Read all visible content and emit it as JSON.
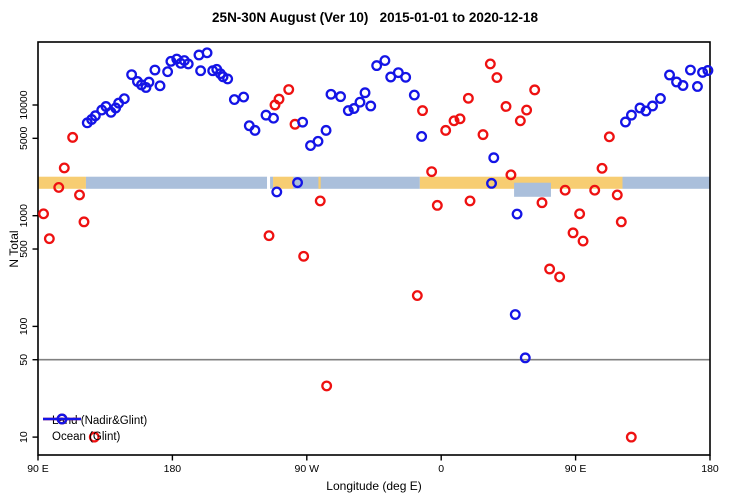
{
  "title": "25N-30N August (Ver 10)   2015-01-01 to 2020-12-18",
  "legend": {
    "land_label": "Land (Nadir&Glint)",
    "ocean_label": "Ocean (Glint)"
  },
  "chart_data": {
    "type": "scatter",
    "title": "25N-30N August (Ver 10)   2015-01-01 to 2020-12-18",
    "xlabel": "Longitude (deg E)",
    "ylabel": "N Total",
    "y_scale": "log10",
    "ylim": [
      7,
      37000
    ],
    "grid": false,
    "legend_position": "bottom-left-inside",
    "x_axis_note": "axis spans 450 deg eastward starting at 90E; deg = degrees east of 90E",
    "x_ticks": [
      {
        "deg": 0,
        "label": "90 E"
      },
      {
        "deg": 90,
        "label": "180"
      },
      {
        "deg": 180,
        "label": "90 W"
      },
      {
        "deg": 270,
        "label": "0"
      },
      {
        "deg": 360,
        "label": "90 E"
      },
      {
        "deg": 450,
        "label": "180"
      }
    ],
    "y_ticks": [
      10,
      50,
      100,
      500,
      1000,
      5000,
      10000
    ],
    "reference_line_n": 50,
    "reference_line_color": "#808080",
    "surface_band": {
      "n_range": [
        1750,
        2250
      ],
      "land_color": "#f7cd72",
      "ocean_color": "#aabfdb",
      "segments": [
        {
          "from": 0,
          "to": 32.1,
          "surface": "land"
        },
        {
          "from": 32.1,
          "to": 153.4,
          "surface": "ocean"
        },
        {
          "from": 153.4,
          "to": 155.4,
          "surface": "gap"
        },
        {
          "from": 155.4,
          "to": 157.4,
          "surface": "ocean"
        },
        {
          "from": 157.4,
          "to": 170.8,
          "surface": "land"
        },
        {
          "from": 170.8,
          "to": 255.7,
          "surface": "ocean"
        },
        {
          "from": 255.7,
          "to": 391.4,
          "surface": "land"
        },
        {
          "from": 391.4,
          "to": 450,
          "surface": "ocean"
        }
      ],
      "details": [
        {
          "type": "land_sliver",
          "from": 187.8,
          "to": 189.3
        },
        {
          "type": "ocean_dip",
          "from": 318.8,
          "to": 343.5
        }
      ]
    },
    "series": [
      {
        "name": "Land (Nadir&Glint)",
        "color": "#ee1111",
        "points": [
          [
            23.2,
            5100
          ],
          [
            17.6,
            2700
          ],
          [
            13.9,
            1800
          ],
          [
            27.8,
            1540
          ],
          [
            3.7,
            1040
          ],
          [
            30.8,
            880
          ],
          [
            7.6,
            620
          ],
          [
            37.7,
            10
          ],
          [
            154.7,
            660
          ],
          [
            158.7,
            10000
          ],
          [
            161.4,
            11300
          ],
          [
            167.9,
            13800
          ],
          [
            172.1,
            6700
          ],
          [
            177.9,
            430
          ],
          [
            189,
            1360
          ],
          [
            193.3,
            29
          ],
          [
            254,
            190
          ],
          [
            257.5,
            8900
          ],
          [
            263.6,
            2500
          ],
          [
            267.4,
            1240
          ],
          [
            273,
            5900
          ],
          [
            278.6,
            7200
          ],
          [
            282.6,
            7500
          ],
          [
            288.2,
            11500
          ],
          [
            289.3,
            1360
          ],
          [
            298,
            5400
          ],
          [
            302.9,
            23500
          ],
          [
            307.3,
            17700
          ],
          [
            313.4,
            9700
          ],
          [
            316.7,
            2340
          ],
          [
            323,
            7200
          ],
          [
            327.2,
            9000
          ],
          [
            332.6,
            13700
          ],
          [
            337.5,
            1310
          ],
          [
            342.6,
            330
          ],
          [
            349.3,
            280
          ],
          [
            353,
            1700
          ],
          [
            358.3,
            700
          ],
          [
            362.7,
            1040
          ],
          [
            365,
            590
          ],
          [
            372.8,
            1700
          ],
          [
            377.7,
            2680
          ],
          [
            382.6,
            5160
          ],
          [
            387.9,
            1540
          ],
          [
            390.6,
            880
          ],
          [
            397.3,
            10
          ]
        ]
      },
      {
        "name": "Ocean (Glint)",
        "color": "#1414e6",
        "points": [
          [
            33,
            6900
          ],
          [
            35.9,
            7400
          ],
          [
            38.4,
            8000
          ],
          [
            42.7,
            9000
          ],
          [
            45.5,
            9700
          ],
          [
            48.9,
            8600
          ],
          [
            52,
            9400
          ],
          [
            54,
            10400
          ],
          [
            57.8,
            11400
          ],
          [
            62.7,
            18800
          ],
          [
            66.6,
            16300
          ],
          [
            69.3,
            15200
          ],
          [
            72.3,
            14400
          ],
          [
            74.3,
            16100
          ],
          [
            78.3,
            20700
          ],
          [
            81.7,
            14900
          ],
          [
            86.8,
            20000
          ],
          [
            89,
            24800
          ],
          [
            92.9,
            26000
          ],
          [
            95.6,
            23800
          ],
          [
            98,
            25200
          ],
          [
            100.6,
            23500
          ],
          [
            107.8,
            28300
          ],
          [
            108.9,
            20400
          ],
          [
            113.2,
            29600
          ],
          [
            117,
            20400
          ],
          [
            119.7,
            21000
          ],
          [
            122.1,
            19200
          ],
          [
            123.9,
            18000
          ],
          [
            127,
            17200
          ],
          [
            131.5,
            11200
          ],
          [
            137.7,
            11800
          ],
          [
            141.5,
            6500
          ],
          [
            145.3,
            5900
          ],
          [
            152.7,
            8100
          ],
          [
            157.7,
            7600
          ],
          [
            159.9,
            1640
          ],
          [
            173.8,
            1990
          ],
          [
            177.2,
            7000
          ],
          [
            182.5,
            4300
          ],
          [
            187.5,
            4700
          ],
          [
            192.9,
            5900
          ],
          [
            196.2,
            12500
          ],
          [
            202.6,
            11900
          ],
          [
            207.8,
            8900
          ],
          [
            211.6,
            9300
          ],
          [
            215.6,
            10600
          ],
          [
            219,
            12900
          ],
          [
            222.8,
            9800
          ],
          [
            226.8,
            22700
          ],
          [
            232.3,
            25200
          ],
          [
            236.2,
            17900
          ],
          [
            241.3,
            19600
          ],
          [
            246.2,
            17800
          ],
          [
            252,
            12300
          ],
          [
            256.9,
            5200
          ],
          [
            303.7,
            1960
          ],
          [
            305.2,
            3340
          ],
          [
            319.6,
            128
          ],
          [
            320.8,
            1035
          ],
          [
            326.3,
            52
          ],
          [
            393.4,
            7020
          ],
          [
            397.4,
            8100
          ],
          [
            403.1,
            9400
          ],
          [
            407.1,
            8830
          ],
          [
            411.5,
            9800
          ],
          [
            416.8,
            11450
          ],
          [
            422.9,
            18670
          ],
          [
            427.6,
            16140
          ],
          [
            431.9,
            15000
          ],
          [
            436.9,
            20700
          ],
          [
            441.6,
            14700
          ],
          [
            445,
            19700
          ],
          [
            448.6,
            20500
          ]
        ]
      }
    ]
  }
}
